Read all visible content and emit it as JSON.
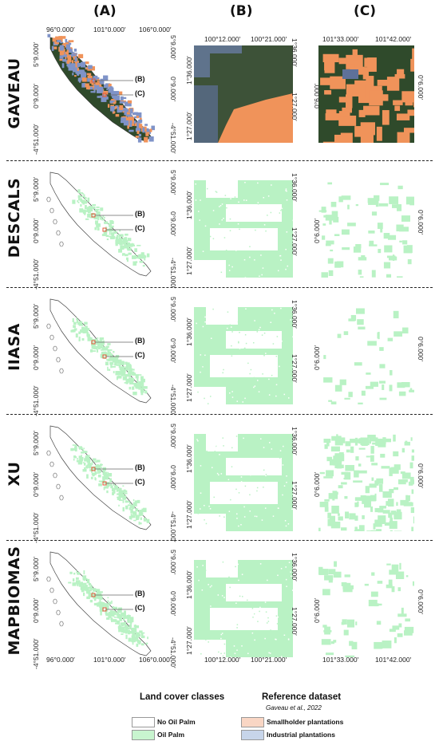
{
  "columns": {
    "a": "(A)",
    "b": "(B)",
    "c": "(C)"
  },
  "rows": [
    {
      "label": "GAVEAU"
    },
    {
      "label": "DESCALS"
    },
    {
      "label": "IIASA"
    },
    {
      "label": "XU"
    },
    {
      "label": "MAPBIOMAS"
    }
  ],
  "coords": {
    "a_top": [
      "96°0.000′",
      "101°0.000′",
      "106°0.000′"
    ],
    "a_bottom": [
      "96°0.000′",
      "101°0.000′",
      "106°0.000′"
    ],
    "a_left": [
      "5°9.000′",
      "0°9.000′",
      "-4°51.000′"
    ],
    "a_right": [
      "5°9.000′",
      "0°9.000′",
      "-4°51.000′"
    ],
    "b_top": [
      "100°12.000′",
      "100°21.000′"
    ],
    "b_bottom": [
      "100°12.000′",
      "100°21.000′"
    ],
    "b_left": [
      "1°36.000′",
      "1°27.000′"
    ],
    "b_right": [
      "1°36.000′",
      "1°27.000′"
    ],
    "c_top": [
      "101°33.000′",
      "101°42.000′"
    ],
    "c_bottom": [
      "101°33.000′",
      "101°42.000′"
    ],
    "c_side": "0°6.000′"
  },
  "callouts": {
    "b": "(B)",
    "c": "(C)"
  },
  "legend": {
    "land_cover_title": "Land cover classes",
    "reference_title": "Reference dataset",
    "reference_citation": "Gaveau et al., 2022",
    "items": [
      {
        "label": "No Oil Palm",
        "color": "#ffffff"
      },
      {
        "label": "Oil Palm",
        "color": "#c8f5cf"
      },
      {
        "label": "Smallholder plantations",
        "color": "#f9d6c4"
      },
      {
        "label": "Industrial plantations",
        "color": "#c7d5ea"
      }
    ]
  },
  "colors": {
    "oil_palm": "#b9f2c4",
    "smallholder": "#f0935a",
    "industrial": "#7f93c8",
    "forest": "#2f4a2b",
    "callout_box": "#e2583a"
  }
}
